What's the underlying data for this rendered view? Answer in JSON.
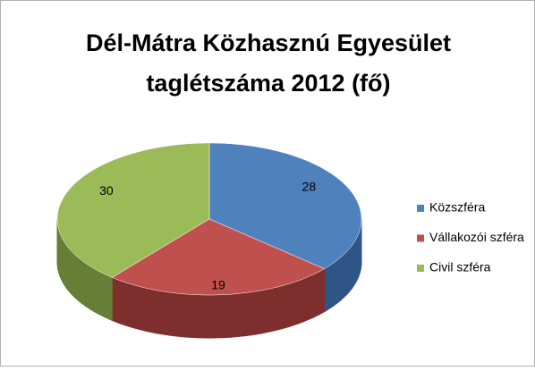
{
  "chart_data": {
    "type": "pie3d",
    "title": [
      "Dél-Mátra Közhasznú Egyesület",
      "taglétszáma 2012 (fő)"
    ],
    "categories": [
      "Közszféra",
      "Vállakozói szféra",
      "Civil szféra"
    ],
    "values": [
      28,
      19,
      30
    ],
    "colors": [
      "#4f81bd",
      "#c0504d",
      "#9bbb59"
    ],
    "side_colors": [
      "#2f5486",
      "#7e2e2c",
      "#667e35"
    ],
    "legend": "right"
  }
}
